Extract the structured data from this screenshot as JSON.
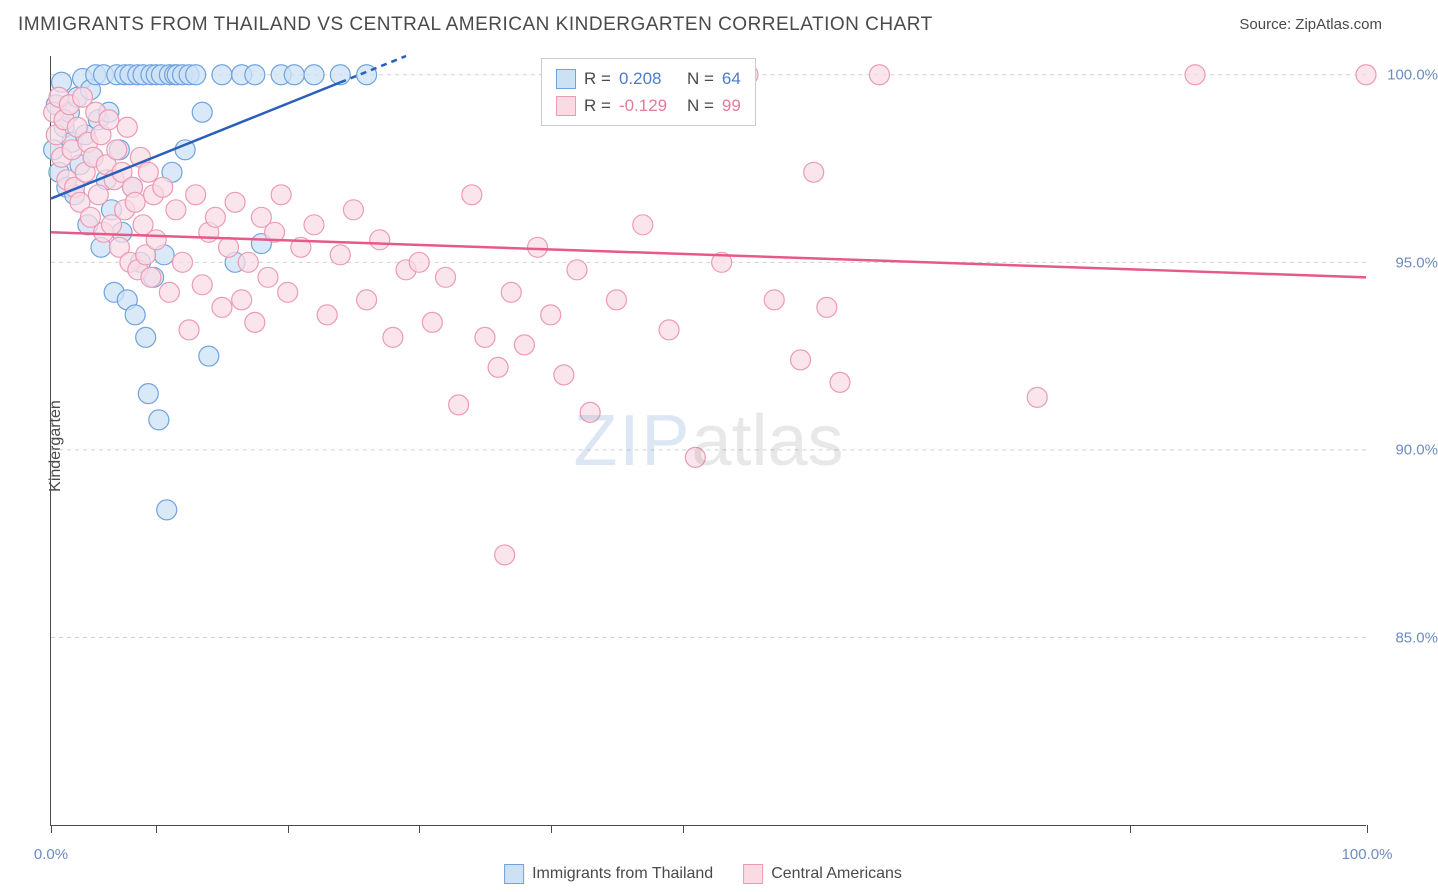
{
  "title": "IMMIGRANTS FROM THAILAND VS CENTRAL AMERICAN KINDERGARTEN CORRELATION CHART",
  "source_label": "Source: ",
  "source_name": "ZipAtlas.com",
  "ylabel": "Kindergarten",
  "watermark_a": "ZIP",
  "watermark_b": "atlas",
  "chart": {
    "type": "scatter",
    "background_color": "#ffffff",
    "grid_color": "#d0d0d0",
    "axis_color": "#4a4a4a",
    "tick_label_color": "#6b8cc4",
    "xlim": [
      0,
      100
    ],
    "ylim": [
      80,
      100.5
    ],
    "yticks": [
      85,
      90,
      95,
      100
    ],
    "ytick_labels": [
      "85.0%",
      "90.0%",
      "95.0%",
      "100.0%"
    ],
    "xtick_positions": [
      0,
      8,
      18,
      28,
      38,
      48,
      82,
      100
    ],
    "xtick_labels_shown": {
      "0": "0.0%",
      "100": "100.0%"
    },
    "series": [
      {
        "name": "Immigrants from Thailand",
        "color_fill": "#cde1f5",
        "color_stroke": "#6fa3dd",
        "line_color": "#2a5fb8",
        "marker_radius": 10,
        "marker_opacity": 0.75,
        "r_value": "0.208",
        "n_value": "64",
        "regression": {
          "x1": 0,
          "y1": 96.7,
          "x2": 27,
          "y2": 100.5,
          "dashed_after_x": 22
        },
        "points": [
          [
            0.2,
            98.0
          ],
          [
            0.4,
            99.2
          ],
          [
            0.6,
            97.4
          ],
          [
            0.8,
            99.8
          ],
          [
            1.0,
            98.6
          ],
          [
            1.2,
            97.0
          ],
          [
            1.4,
            99.0
          ],
          [
            1.6,
            98.2
          ],
          [
            1.8,
            96.8
          ],
          [
            2.0,
            99.4
          ],
          [
            2.2,
            97.6
          ],
          [
            2.4,
            99.9
          ],
          [
            2.6,
            98.4
          ],
          [
            2.8,
            96.0
          ],
          [
            3.0,
            99.6
          ],
          [
            3.2,
            97.8
          ],
          [
            3.4,
            100.0
          ],
          [
            3.6,
            98.8
          ],
          [
            3.8,
            95.4
          ],
          [
            4.0,
            100.0
          ],
          [
            4.2,
            97.2
          ],
          [
            4.4,
            99.0
          ],
          [
            4.6,
            96.4
          ],
          [
            4.8,
            94.2
          ],
          [
            5.0,
            100.0
          ],
          [
            5.2,
            98.0
          ],
          [
            5.4,
            95.8
          ],
          [
            5.6,
            100.0
          ],
          [
            5.8,
            94.0
          ],
          [
            6.0,
            100.0
          ],
          [
            6.2,
            97.0
          ],
          [
            6.4,
            93.6
          ],
          [
            6.6,
            100.0
          ],
          [
            6.8,
            95.0
          ],
          [
            7.0,
            100.0
          ],
          [
            7.2,
            93.0
          ],
          [
            7.4,
            91.5
          ],
          [
            7.6,
            100.0
          ],
          [
            7.8,
            94.6
          ],
          [
            8.0,
            100.0
          ],
          [
            8.2,
            90.8
          ],
          [
            8.4,
            100.0
          ],
          [
            8.6,
            95.2
          ],
          [
            8.8,
            88.4
          ],
          [
            9.0,
            100.0
          ],
          [
            9.2,
            97.4
          ],
          [
            9.4,
            100.0
          ],
          [
            9.6,
            100.0
          ],
          [
            10.0,
            100.0
          ],
          [
            10.2,
            98.0
          ],
          [
            10.5,
            100.0
          ],
          [
            11.0,
            100.0
          ],
          [
            11.5,
            99.0
          ],
          [
            12.0,
            92.5
          ],
          [
            13.0,
            100.0
          ],
          [
            14.0,
            95.0
          ],
          [
            14.5,
            100.0
          ],
          [
            15.5,
            100.0
          ],
          [
            16.0,
            95.5
          ],
          [
            17.5,
            100.0
          ],
          [
            18.5,
            100.0
          ],
          [
            20.0,
            100.0
          ],
          [
            22.0,
            100.0
          ],
          [
            24.0,
            100.0
          ]
        ]
      },
      {
        "name": "Central Americans",
        "color_fill": "#fadbe4",
        "color_stroke": "#ed9ab4",
        "line_color": "#e75a88",
        "marker_radius": 10,
        "marker_opacity": 0.72,
        "r_value": "-0.129",
        "n_value": "99",
        "regression": {
          "x1": 0,
          "y1": 95.8,
          "x2": 100,
          "y2": 94.6,
          "dashed_after_x": 100
        },
        "points": [
          [
            0.2,
            99.0
          ],
          [
            0.4,
            98.4
          ],
          [
            0.6,
            99.4
          ],
          [
            0.8,
            97.8
          ],
          [
            1.0,
            98.8
          ],
          [
            1.2,
            97.2
          ],
          [
            1.4,
            99.2
          ],
          [
            1.6,
            98.0
          ],
          [
            1.8,
            97.0
          ],
          [
            2.0,
            98.6
          ],
          [
            2.2,
            96.6
          ],
          [
            2.4,
            99.4
          ],
          [
            2.6,
            97.4
          ],
          [
            2.8,
            98.2
          ],
          [
            3.0,
            96.2
          ],
          [
            3.2,
            97.8
          ],
          [
            3.4,
            99.0
          ],
          [
            3.6,
            96.8
          ],
          [
            3.8,
            98.4
          ],
          [
            4.0,
            95.8
          ],
          [
            4.2,
            97.6
          ],
          [
            4.4,
            98.8
          ],
          [
            4.6,
            96.0
          ],
          [
            4.8,
            97.2
          ],
          [
            5.0,
            98.0
          ],
          [
            5.2,
            95.4
          ],
          [
            5.4,
            97.4
          ],
          [
            5.6,
            96.4
          ],
          [
            5.8,
            98.6
          ],
          [
            6.0,
            95.0
          ],
          [
            6.2,
            97.0
          ],
          [
            6.4,
            96.6
          ],
          [
            6.6,
            94.8
          ],
          [
            6.8,
            97.8
          ],
          [
            7.0,
            96.0
          ],
          [
            7.2,
            95.2
          ],
          [
            7.4,
            97.4
          ],
          [
            7.6,
            94.6
          ],
          [
            7.8,
            96.8
          ],
          [
            8.0,
            95.6
          ],
          [
            8.5,
            97.0
          ],
          [
            9.0,
            94.2
          ],
          [
            9.5,
            96.4
          ],
          [
            10.0,
            95.0
          ],
          [
            10.5,
            93.2
          ],
          [
            11.0,
            96.8
          ],
          [
            11.5,
            94.4
          ],
          [
            12.0,
            95.8
          ],
          [
            12.5,
            96.2
          ],
          [
            13.0,
            93.8
          ],
          [
            13.5,
            95.4
          ],
          [
            14.0,
            96.6
          ],
          [
            14.5,
            94.0
          ],
          [
            15.0,
            95.0
          ],
          [
            15.5,
            93.4
          ],
          [
            16.0,
            96.2
          ],
          [
            16.5,
            94.6
          ],
          [
            17.0,
            95.8
          ],
          [
            17.5,
            96.8
          ],
          [
            18.0,
            94.2
          ],
          [
            19.0,
            95.4
          ],
          [
            20.0,
            96.0
          ],
          [
            21.0,
            93.6
          ],
          [
            22.0,
            95.2
          ],
          [
            23.0,
            96.4
          ],
          [
            24.0,
            94.0
          ],
          [
            25.0,
            95.6
          ],
          [
            26.0,
            93.0
          ],
          [
            27.0,
            94.8
          ],
          [
            28.0,
            95.0
          ],
          [
            29.0,
            93.4
          ],
          [
            30.0,
            94.6
          ],
          [
            31.0,
            91.2
          ],
          [
            32.0,
            96.8
          ],
          [
            33.0,
            93.0
          ],
          [
            34.0,
            92.2
          ],
          [
            34.5,
            87.2
          ],
          [
            35.0,
            94.2
          ],
          [
            36.0,
            92.8
          ],
          [
            37.0,
            95.4
          ],
          [
            38.0,
            93.6
          ],
          [
            39.0,
            92.0
          ],
          [
            40.0,
            94.8
          ],
          [
            41.0,
            91.0
          ],
          [
            43.0,
            94.0
          ],
          [
            45.0,
            96.0
          ],
          [
            47.0,
            93.2
          ],
          [
            49.0,
            89.8
          ],
          [
            51.0,
            95.0
          ],
          [
            53.0,
            100.0
          ],
          [
            55.0,
            94.0
          ],
          [
            57.0,
            92.4
          ],
          [
            58.0,
            97.4
          ],
          [
            59.0,
            93.8
          ],
          [
            60.0,
            91.8
          ],
          [
            63.0,
            100.0
          ],
          [
            75.0,
            91.4
          ],
          [
            87.0,
            100.0
          ],
          [
            100.0,
            100.0
          ]
        ]
      }
    ]
  },
  "legend_box": {
    "r_label": "R =",
    "n_label": "N ="
  },
  "bottom_legend": {
    "series1_label": "Immigrants from Thailand",
    "series2_label": "Central Americans"
  }
}
